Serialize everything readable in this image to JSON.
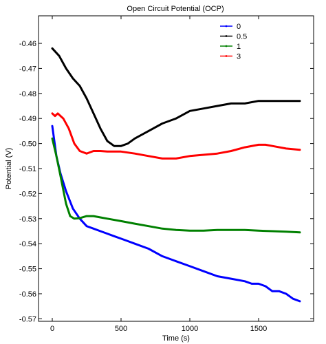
{
  "chart_data": {
    "type": "line",
    "title": "Open Circuit Potential (OCP)",
    "xlabel": "Time (s)",
    "ylabel": "Potential (V)",
    "xlim": [
      -100,
      1900
    ],
    "ylim": [
      -0.571,
      -0.449
    ],
    "xticks": [
      0,
      500,
      1000,
      1500
    ],
    "yticks": [
      -0.46,
      -0.47,
      -0.48,
      -0.49,
      -0.5,
      -0.51,
      -0.52,
      -0.53,
      -0.54,
      -0.55,
      -0.56,
      -0.57
    ],
    "ytick_labels": [
      "-0.46",
      "-0.47",
      "-0.48",
      "-0.49",
      "-0.50",
      "-0.51",
      "-0.52",
      "-0.53",
      "-0.54",
      "-0.55",
      "-0.56",
      "-0.57"
    ],
    "grid": false,
    "legend_position": "top-right",
    "series": [
      {
        "name": "0",
        "color": "#0000ff",
        "x": [
          0,
          30,
          60,
          100,
          150,
          200,
          250,
          300,
          350,
          400,
          450,
          500,
          550,
          600,
          700,
          800,
          900,
          1000,
          1100,
          1200,
          1300,
          1400,
          1450,
          1500,
          1550,
          1600,
          1650,
          1700,
          1750,
          1800
        ],
        "y": [
          -0.493,
          -0.505,
          -0.512,
          -0.519,
          -0.526,
          -0.53,
          -0.533,
          -0.534,
          -0.535,
          -0.536,
          -0.537,
          -0.538,
          -0.539,
          -0.54,
          -0.542,
          -0.545,
          -0.547,
          -0.549,
          -0.551,
          -0.553,
          -0.554,
          -0.555,
          -0.556,
          -0.556,
          -0.557,
          -0.559,
          -0.559,
          -0.56,
          -0.562,
          -0.563
        ]
      },
      {
        "name": "0.5",
        "color": "#000000",
        "x": [
          0,
          50,
          100,
          150,
          200,
          250,
          300,
          350,
          400,
          450,
          500,
          550,
          600,
          700,
          800,
          900,
          1000,
          1100,
          1200,
          1300,
          1400,
          1500,
          1550,
          1600,
          1700,
          1800
        ],
        "y": [
          -0.462,
          -0.465,
          -0.47,
          -0.474,
          -0.477,
          -0.482,
          -0.488,
          -0.494,
          -0.499,
          -0.501,
          -0.501,
          -0.5,
          -0.498,
          -0.495,
          -0.492,
          -0.49,
          -0.487,
          -0.486,
          -0.485,
          -0.484,
          -0.484,
          -0.483,
          -0.483,
          -0.483,
          -0.483,
          -0.483
        ]
      },
      {
        "name": "1",
        "color": "#008000",
        "x": [
          0,
          30,
          60,
          100,
          130,
          160,
          200,
          250,
          300,
          350,
          400,
          500,
          600,
          700,
          800,
          900,
          1000,
          1100,
          1200,
          1300,
          1400,
          1500,
          1600,
          1700,
          1800
        ],
        "y": [
          -0.498,
          -0.505,
          -0.513,
          -0.524,
          -0.529,
          -0.53,
          -0.5298,
          -0.529,
          -0.529,
          -0.5295,
          -0.53,
          -0.531,
          -0.532,
          -0.533,
          -0.534,
          -0.5345,
          -0.5348,
          -0.5348,
          -0.5345,
          -0.5345,
          -0.5345,
          -0.5348,
          -0.535,
          -0.5352,
          -0.5355
        ]
      },
      {
        "name": "3",
        "color": "#ff0000",
        "x": [
          0,
          20,
          40,
          60,
          80,
          120,
          160,
          200,
          250,
          300,
          350,
          400,
          500,
          600,
          700,
          800,
          900,
          1000,
          1100,
          1200,
          1300,
          1400,
          1500,
          1550,
          1600,
          1700,
          1800
        ],
        "y": [
          -0.488,
          -0.489,
          -0.488,
          -0.489,
          -0.49,
          -0.494,
          -0.5,
          -0.503,
          -0.504,
          -0.503,
          -0.503,
          -0.5032,
          -0.5032,
          -0.504,
          -0.505,
          -0.506,
          -0.506,
          -0.505,
          -0.5045,
          -0.504,
          -0.503,
          -0.5015,
          -0.5005,
          -0.5005,
          -0.501,
          -0.502,
          -0.5025
        ]
      }
    ]
  }
}
